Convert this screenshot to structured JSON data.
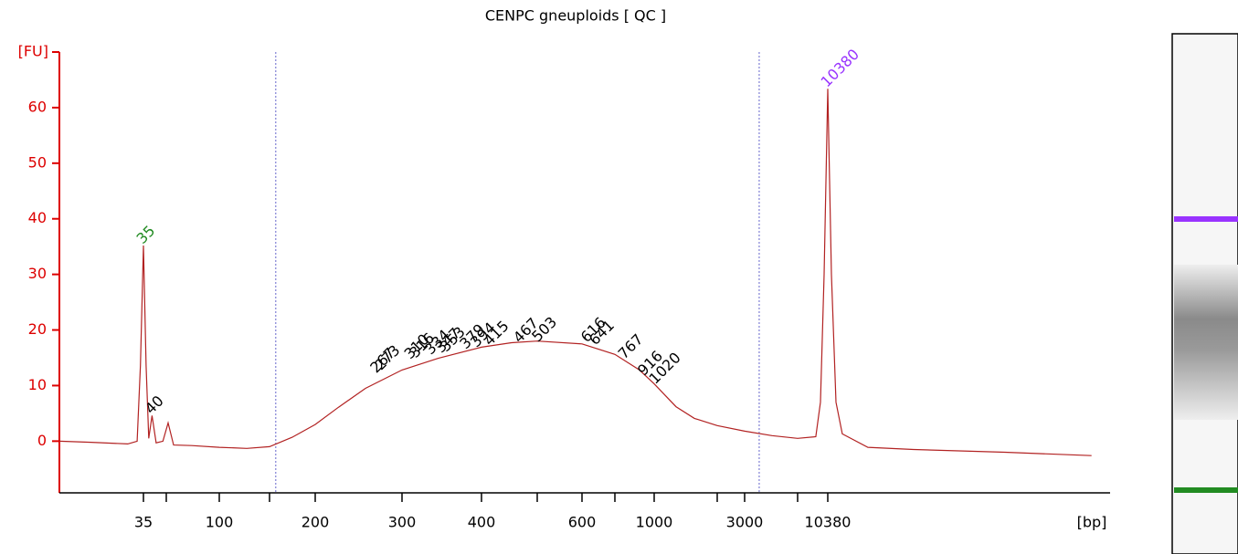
{
  "chart_data": {
    "type": "line",
    "title": "CENPC gneuploids  [ QC ]",
    "y_label": "[FU]",
    "x_label": "[bp]",
    "color": "#b22222",
    "axis_color": "#dd0000",
    "ylim": [
      -9.3,
      70
    ],
    "yticks": [
      0,
      10,
      20,
      30,
      40,
      50,
      60
    ],
    "xticks": [
      35,
      {
        "value": 50,
        "label": null
      },
      100,
      {
        "value": 150,
        "label": null
      },
      200,
      300,
      400,
      {
        "value": 500,
        "label": null
      },
      600,
      {
        "value": 700,
        "label": null
      },
      1000,
      {
        "value": 2000,
        "label": null
      },
      3000,
      {
        "value": 7000,
        "label": null
      },
      10380
    ],
    "x": [
      9.4,
      15.5,
      27.4,
      31.7,
      33.4,
      35,
      36.5,
      38,
      40,
      42.7,
      47.4,
      51.2,
      55,
      69.8,
      100,
      124.8,
      150,
      173,
      200,
      223,
      252.9,
      300,
      342,
      400,
      451,
      500,
      600,
      700,
      875,
      1000,
      1272,
      1556,
      2000,
      3000,
      4643,
      7000,
      8882,
      9431,
      9893,
      10380,
      10890,
      11555,
      12557,
      17540,
      31870,
      105000,
      326000
    ],
    "values": [
      0,
      -0.2,
      -0.5,
      0,
      13.6,
      35.2,
      13.6,
      0.5,
      4.6,
      -0.3,
      0,
      3.3,
      -0.7,
      -0.8,
      -1.1,
      -1.3,
      -1.0,
      0.7,
      3.0,
      6.1,
      9.5,
      12.8,
      14.9,
      16.9,
      17.7,
      18.0,
      17.5,
      15.6,
      12.8,
      10.3,
      6.2,
      4.1,
      2.8,
      1.8,
      1.0,
      0.5,
      0.8,
      7.0,
      30,
      63.4,
      30,
      7.0,
      1.3,
      -1.1,
      -1.5,
      -2.0,
      -2.6
    ],
    "region": [
      156,
      3787
    ],
    "region_color": "#6666cc",
    "peaks": [
      {
        "bp": 35,
        "fu": 35.2,
        "color": "#228b22"
      },
      {
        "bp": 40,
        "fu": 4.6,
        "color": "#000000"
      },
      {
        "bp": 267,
        "fu": 12,
        "color": "#000000"
      },
      {
        "bp": 273,
        "fu": 12.5,
        "color": "#000000"
      },
      {
        "bp": 310,
        "fu": 14.5,
        "color": "#000000"
      },
      {
        "bp": 316,
        "fu": 14.7,
        "color": "#000000"
      },
      {
        "bp": 334,
        "fu": 15.3,
        "color": "#000000"
      },
      {
        "bp": 347,
        "fu": 15.6,
        "color": "#000000"
      },
      {
        "bp": 353,
        "fu": 15.8,
        "color": "#000000"
      },
      {
        "bp": 379,
        "fu": 16.3,
        "color": "#000000"
      },
      {
        "bp": 394,
        "fu": 16.6,
        "color": "#000000"
      },
      {
        "bp": 415,
        "fu": 16.9,
        "color": "#000000"
      },
      {
        "bp": 467,
        "fu": 17.4,
        "color": "#000000"
      },
      {
        "bp": 503,
        "fu": 17.6,
        "color": "#000000"
      },
      {
        "bp": 616,
        "fu": 17.5,
        "color": "#000000"
      },
      {
        "bp": 641,
        "fu": 17.0,
        "color": "#000000"
      },
      {
        "bp": 767,
        "fu": 14.5,
        "color": "#000000"
      },
      {
        "bp": 916,
        "fu": 11.5,
        "color": "#000000"
      },
      {
        "bp": 1020,
        "fu": 10.0,
        "color": "#000000"
      },
      {
        "bp": 10380,
        "fu": 63.4,
        "color": "#9933ff"
      }
    ]
  }
}
